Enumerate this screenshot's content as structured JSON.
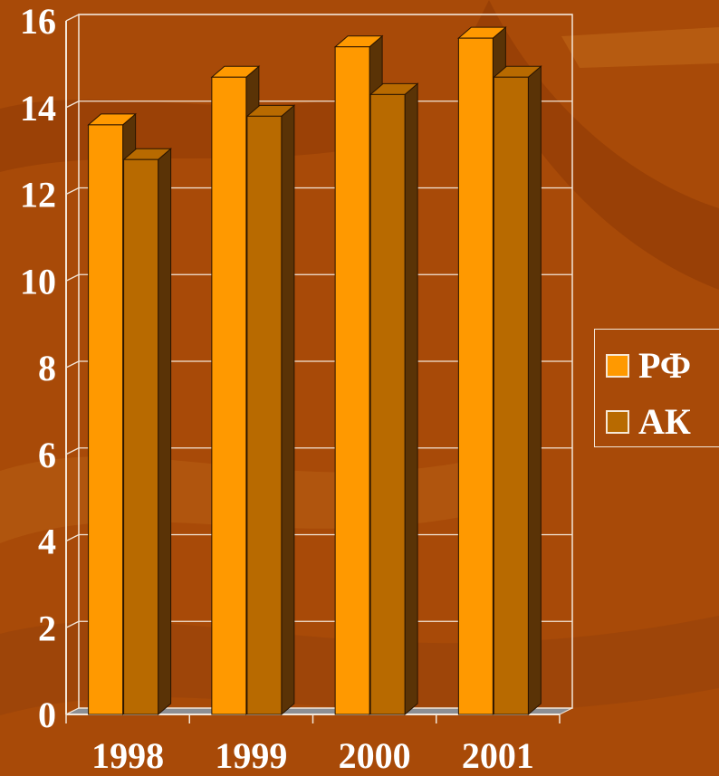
{
  "chart_data": {
    "type": "bar",
    "categories": [
      "1998",
      "1999",
      "2000",
      "2001"
    ],
    "series": [
      {
        "name": "РФ",
        "values": [
          13.6,
          14.7,
          15.4,
          15.6
        ],
        "color": "#ff9900"
      },
      {
        "name": "АК",
        "values": [
          12.8,
          13.8,
          14.3,
          14.7
        ],
        "color": "#b86a00"
      }
    ],
    "ylim": [
      0,
      16
    ],
    "yticks": [
      "0",
      "2",
      "4",
      "6",
      "8",
      "10",
      "12",
      "14",
      "16"
    ],
    "grid": true,
    "legend_position": "right",
    "title": "",
    "xlabel": "",
    "ylabel": ""
  },
  "colors": {
    "background": "#a84a08",
    "plot_lines": "#f3e6d8",
    "bar_side_dark": "#5a3306",
    "floor": "#8c8f94"
  }
}
